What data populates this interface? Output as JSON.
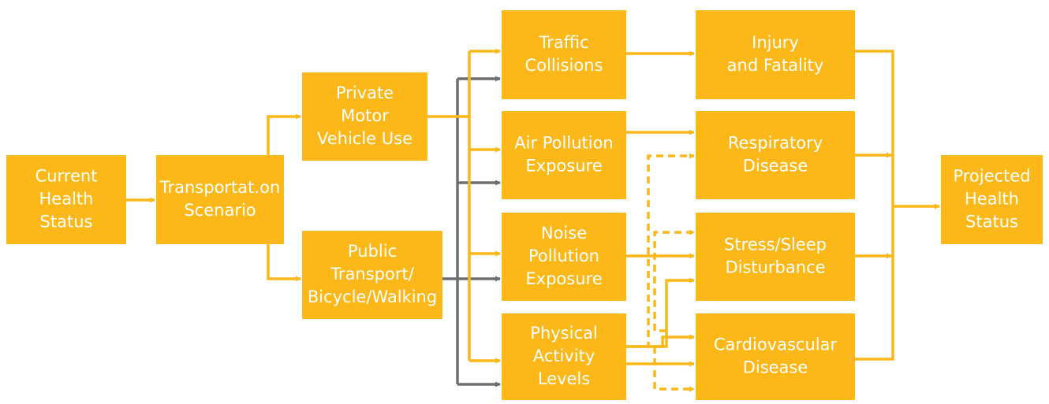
{
  "nodes": [
    {
      "lines": [
        "Current",
        "Health",
        "Status"
      ]
    },
    {
      "lines": [
        "Transportat.on",
        "Scenario"
      ]
    },
    {
      "lines": [
        "Private",
        "Motor",
        "Vehicle Use"
      ]
    },
    {
      "lines": [
        "Public",
        "Transport/",
        "Bicycle/Walking"
      ]
    },
    {
      "lines": [
        "Traffic",
        "Collisions"
      ]
    },
    {
      "lines": [
        "Air Pollution",
        "Exposure"
      ]
    },
    {
      "lines": [
        "Noise",
        "Pollution",
        "Exposure"
      ]
    },
    {
      "lines": [
        "Physical",
        "Activity",
        "Levels"
      ]
    },
    {
      "lines": [
        "Injury",
        "and Fatality"
      ]
    },
    {
      "lines": [
        "Respiratory",
        "Disease"
      ]
    },
    {
      "lines": [
        "Stress/Sleep",
        "Disturbance"
      ]
    },
    {
      "lines": [
        "Cardiovascular",
        "Disease"
      ]
    },
    {
      "lines": [
        "Projected",
        "Health",
        "Status"
      ]
    }
  ]
}
